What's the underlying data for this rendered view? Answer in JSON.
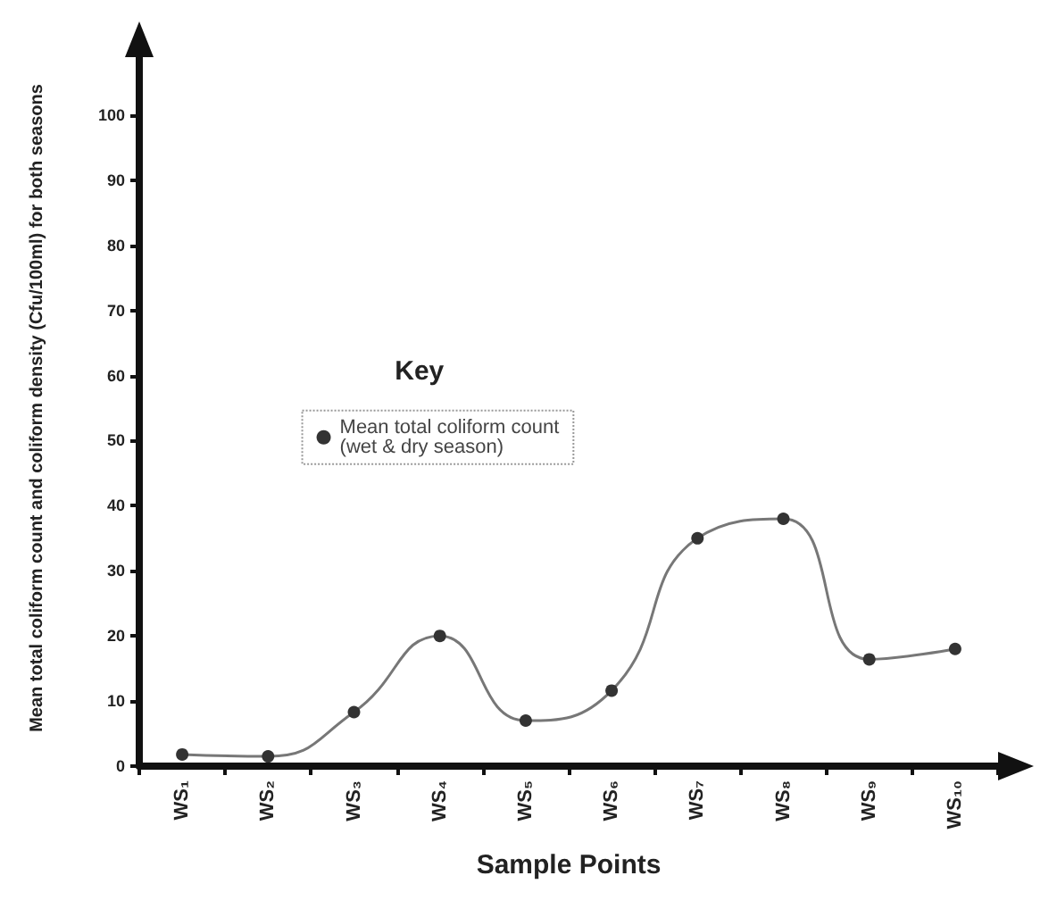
{
  "chart_data": {
    "type": "line",
    "xlabel": "Sample Points",
    "ylabel": "Mean total coliform count and coliform density (Cfu/100ml) for both seasons",
    "legend_title": "Key",
    "categories": [
      "WS₁",
      "WS₂",
      "WS₃",
      "WS₄",
      "WS₅",
      "WS₆",
      "WS₇",
      "WS₈",
      "WS₉",
      "WS₁₀"
    ],
    "series": [
      {
        "name": "Mean total coliform count\n(wet & dry season)",
        "color": "#333333",
        "values": [
          1.8,
          1.5,
          8.3,
          20,
          7,
          11.6,
          35,
          38,
          16.4,
          18
        ]
      }
    ],
    "ylim": [
      0,
      110
    ],
    "yticks": [
      0,
      10,
      20,
      30,
      40,
      50,
      60,
      70,
      80,
      90,
      100
    ],
    "marker": "circle",
    "line_style": "solid",
    "legend": "center",
    "grid": false
  }
}
